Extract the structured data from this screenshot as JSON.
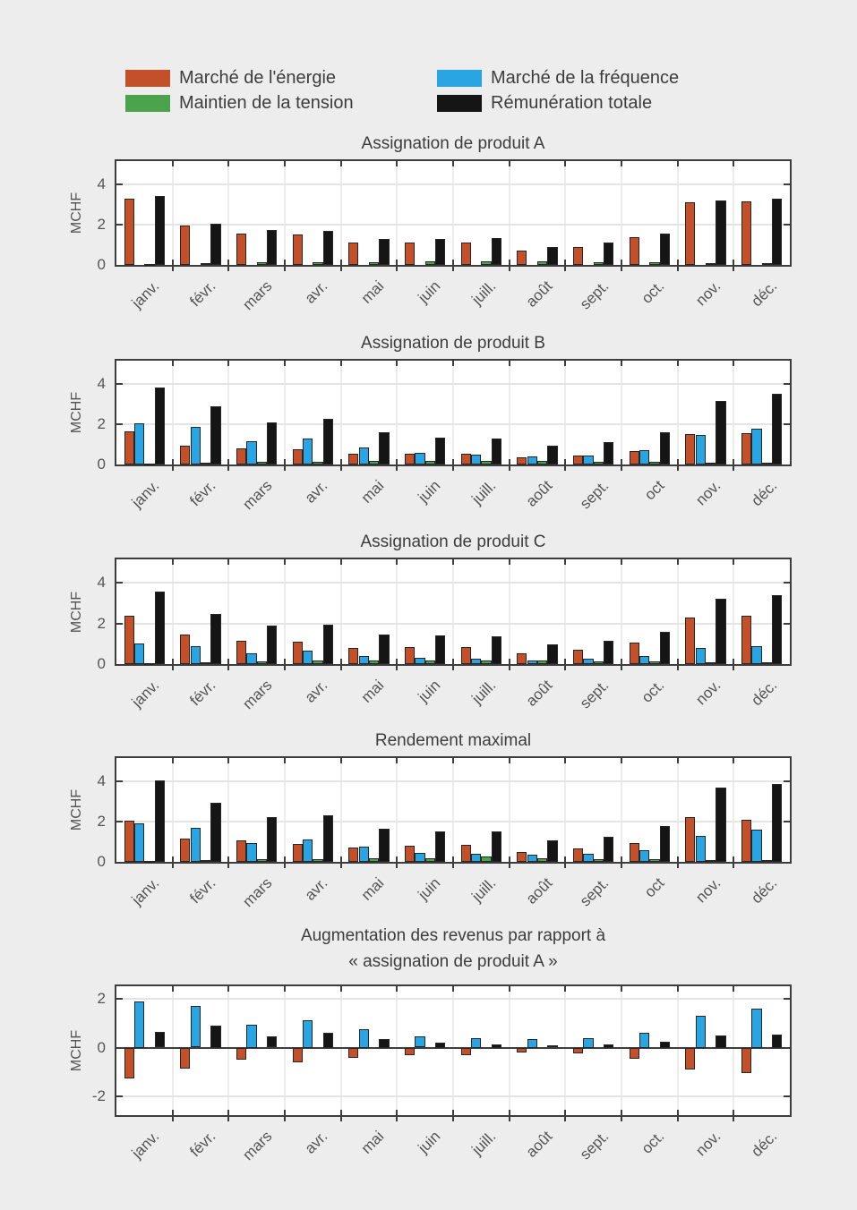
{
  "figure": {
    "background": "#ededed",
    "plot_background": "#ffffff"
  },
  "legend": {
    "items": [
      {
        "label": "Marché de l'énergie",
        "color": "#c4502a"
      },
      {
        "label": "Marché de la fréquence",
        "color": "#29a5e3"
      },
      {
        "label": "Maintien de la tension",
        "color": "#4ba44b"
      },
      {
        "label": "Rémunération totale",
        "color": "#151515"
      }
    ]
  },
  "chart_data": [
    {
      "type": "bar",
      "title": "Assignation de produit A",
      "ylabel": "MCHF",
      "categories": [
        "janv.",
        "févr.",
        "mars",
        "avr.",
        "mai",
        "juin",
        "juill.",
        "août",
        "sept.",
        "oct.",
        "nov.",
        "déc."
      ],
      "yticks": [
        0,
        2,
        4
      ],
      "ylim": [
        0,
        5.15
      ],
      "grid": true,
      "series": [
        {
          "name": "Marché de l'énergie",
          "color": "#c4502a",
          "values": [
            3.3,
            1.95,
            1.55,
            1.5,
            1.1,
            1.1,
            1.1,
            0.7,
            0.9,
            1.4,
            3.1,
            3.15
          ]
        },
        {
          "name": "Marché de la fréquence",
          "color": "#29a5e3",
          "values": [
            0,
            0,
            0,
            0,
            0,
            0,
            0,
            0,
            0,
            0,
            0,
            0
          ]
        },
        {
          "name": "Maintien de la tension",
          "color": "#4ba44b",
          "values": [
            0.05,
            0.07,
            0.12,
            0.15,
            0.15,
            0.2,
            0.2,
            0.18,
            0.15,
            0.13,
            0.1,
            0.1
          ]
        },
        {
          "name": "Rémunération totale",
          "color": "#151515",
          "values": [
            3.4,
            2.05,
            1.75,
            1.7,
            1.3,
            1.3,
            1.35,
            0.9,
            1.1,
            1.55,
            3.2,
            3.3
          ]
        }
      ]
    },
    {
      "type": "bar",
      "title": "Assignation de produit B",
      "ylabel": "MCHF",
      "categories": [
        "janv.",
        "févr.",
        "mars",
        "avr.",
        "mai",
        "juin",
        "juill.",
        "août",
        "sept.",
        "oct",
        "nov.",
        "déc."
      ],
      "yticks": [
        0,
        2,
        4
      ],
      "ylim": [
        0,
        5.15
      ],
      "grid": true,
      "series": [
        {
          "name": "Marché de l'énergie",
          "color": "#c4502a",
          "values": [
            1.65,
            0.95,
            0.8,
            0.75,
            0.55,
            0.55,
            0.55,
            0.35,
            0.45,
            0.65,
            1.5,
            1.55
          ]
        },
        {
          "name": "Marché de la fréquence",
          "color": "#29a5e3",
          "values": [
            2.05,
            1.85,
            1.15,
            1.3,
            0.85,
            0.6,
            0.5,
            0.4,
            0.45,
            0.7,
            1.45,
            1.8
          ]
        },
        {
          "name": "Maintien de la tension",
          "color": "#4ba44b",
          "values": [
            0.05,
            0.08,
            0.13,
            0.15,
            0.17,
            0.2,
            0.2,
            0.2,
            0.13,
            0.13,
            0.08,
            0.1
          ]
        },
        {
          "name": "Rémunération totale",
          "color": "#151515",
          "values": [
            3.8,
            2.9,
            2.1,
            2.25,
            1.6,
            1.35,
            1.3,
            0.95,
            1.1,
            1.6,
            3.15,
            3.5
          ]
        }
      ]
    },
    {
      "type": "bar",
      "title": "Assignation de produit C",
      "ylabel": "MCHF",
      "categories": [
        "janv.",
        "févr.",
        "mars",
        "avr.",
        "mai",
        "juin",
        "juill.",
        "août",
        "sept.",
        "oct.",
        "nov.",
        "déc."
      ],
      "yticks": [
        0,
        2,
        4
      ],
      "ylim": [
        0,
        5.15
      ],
      "grid": true,
      "series": [
        {
          "name": "Marché de l'énergie",
          "color": "#c4502a",
          "values": [
            2.4,
            1.45,
            1.15,
            1.1,
            0.8,
            0.85,
            0.85,
            0.55,
            0.7,
            1.05,
            2.3,
            2.4
          ]
        },
        {
          "name": "Marché de la fréquence",
          "color": "#29a5e3",
          "values": [
            1.0,
            0.9,
            0.55,
            0.65,
            0.4,
            0.3,
            0.25,
            0.2,
            0.25,
            0.4,
            0.8,
            0.9
          ]
        },
        {
          "name": "Maintien de la tension",
          "color": "#4ba44b",
          "values": [
            0.05,
            0.08,
            0.13,
            0.17,
            0.17,
            0.18,
            0.2,
            0.18,
            0.15,
            0.15,
            0.1,
            0.1
          ]
        },
        {
          "name": "Rémunération totale",
          "color": "#151515",
          "values": [
            3.55,
            2.45,
            1.9,
            1.95,
            1.45,
            1.4,
            1.35,
            0.95,
            1.15,
            1.6,
            3.2,
            3.4
          ]
        }
      ]
    },
    {
      "type": "bar",
      "title": "Rendement maximal",
      "ylabel": "MCHF",
      "categories": [
        "janv.",
        "févr.",
        "mars",
        "avr.",
        "mai",
        "juin",
        "juill.",
        "août",
        "sept.",
        "oct",
        "nov.",
        "déc."
      ],
      "yticks": [
        0,
        2,
        4
      ],
      "ylim": [
        0,
        5.15
      ],
      "grid": true,
      "series": [
        {
          "name": "Marché de l'énergie",
          "color": "#c4502a",
          "values": [
            2.05,
            1.15,
            1.05,
            0.9,
            0.7,
            0.8,
            0.85,
            0.5,
            0.65,
            0.95,
            2.2,
            2.1
          ]
        },
        {
          "name": "Marché de la fréquence",
          "color": "#29a5e3",
          "values": [
            1.9,
            1.7,
            0.95,
            1.1,
            0.75,
            0.45,
            0.4,
            0.35,
            0.4,
            0.6,
            1.3,
            1.6
          ]
        },
        {
          "name": "Maintien de la tension",
          "color": "#4ba44b",
          "values": [
            0.05,
            0.08,
            0.13,
            0.15,
            0.17,
            0.2,
            0.25,
            0.2,
            0.15,
            0.15,
            0.1,
            0.1
          ]
        },
        {
          "name": "Rémunération totale",
          "color": "#151515",
          "values": [
            4.05,
            2.95,
            2.2,
            2.3,
            1.65,
            1.5,
            1.5,
            1.05,
            1.25,
            1.8,
            3.7,
            3.85
          ]
        }
      ]
    },
    {
      "type": "bar",
      "title": "Augmentation des revenus par rapport à\n« assignation de produit A »",
      "ylabel": "MCHF",
      "categories": [
        "janv.",
        "févr.",
        "mars",
        "avr.",
        "mai",
        "juin",
        "juill.",
        "août",
        "sept.",
        "oct.",
        "nov.",
        "déc."
      ],
      "yticks": [
        -2,
        0,
        2
      ],
      "ylim": [
        -2.75,
        2.5
      ],
      "grid": true,
      "zero_line": true,
      "series": [
        {
          "name": "Marché de l'énergie",
          "color": "#c4502a",
          "values": [
            -1.25,
            -0.85,
            -0.5,
            -0.6,
            -0.4,
            -0.3,
            -0.3,
            -0.2,
            -0.25,
            -0.45,
            -0.9,
            -1.05
          ]
        },
        {
          "name": "Marché de la fréquence",
          "color": "#29a5e3",
          "values": [
            1.9,
            1.7,
            0.95,
            1.1,
            0.75,
            0.45,
            0.4,
            0.35,
            0.4,
            0.6,
            1.3,
            1.6
          ]
        },
        {
          "name": "Maintien de la tension",
          "color": "#4ba44b",
          "values": [
            0,
            0,
            0,
            0,
            0,
            0,
            0,
            0,
            0,
            0,
            0,
            0
          ]
        },
        {
          "name": "Rémunération totale",
          "color": "#151515",
          "values": [
            0.65,
            0.9,
            0.45,
            0.6,
            0.35,
            0.2,
            0.15,
            0.1,
            0.15,
            0.25,
            0.5,
            0.55
          ]
        }
      ]
    }
  ]
}
